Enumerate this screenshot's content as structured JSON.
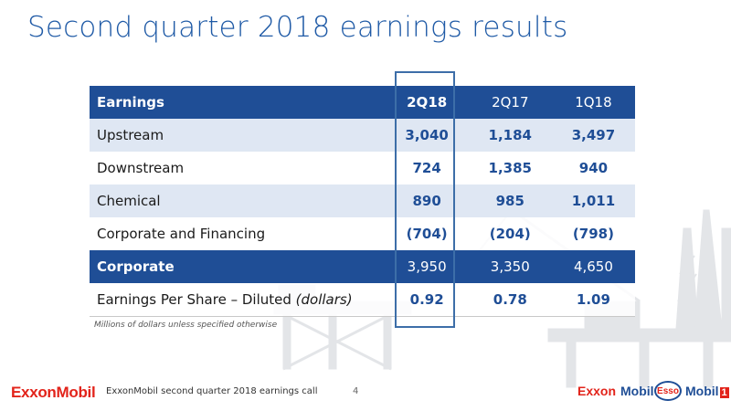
{
  "title": "Second quarter 2018 earnings results",
  "table": {
    "header": {
      "label": "Earnings",
      "cols": [
        "2Q18",
        "2Q17",
        "1Q18"
      ]
    },
    "rows": [
      {
        "label": "Upstream",
        "values": [
          "3,040",
          "1,184",
          "3,497"
        ]
      },
      {
        "label": "Downstream",
        "values": [
          "724",
          "1,385",
          "940"
        ]
      },
      {
        "label": "Chemical",
        "values": [
          "890",
          "985",
          "1,011"
        ]
      },
      {
        "label": "Corporate and Financing",
        "values": [
          "(704)",
          "(204)",
          "(798)"
        ]
      }
    ],
    "total": {
      "label": "Corporate",
      "values": [
        "3,950",
        "3,350",
        "4,650"
      ]
    },
    "eps": {
      "label": "Earnings Per Share – Diluted ",
      "label_italic": "(dollars)",
      "values": [
        "0.92",
        "0.78",
        "1.09"
      ]
    }
  },
  "footnote": "Millions of dollars unless specified otherwise",
  "footer": {
    "logo": "ExxonMobil",
    "text": "ExxonMobil second quarter 2018 earnings call",
    "page": "4",
    "brands": {
      "exxon": "Exxon",
      "mobil": "Mobil",
      "esso": "Esso",
      "mobil1": "Mobil",
      "mobil1_num": "1"
    }
  },
  "colors": {
    "primary": "#1f4e96",
    "title": "#1f5aa6",
    "shade": "#dfe7f3",
    "red": "#e2231a"
  }
}
